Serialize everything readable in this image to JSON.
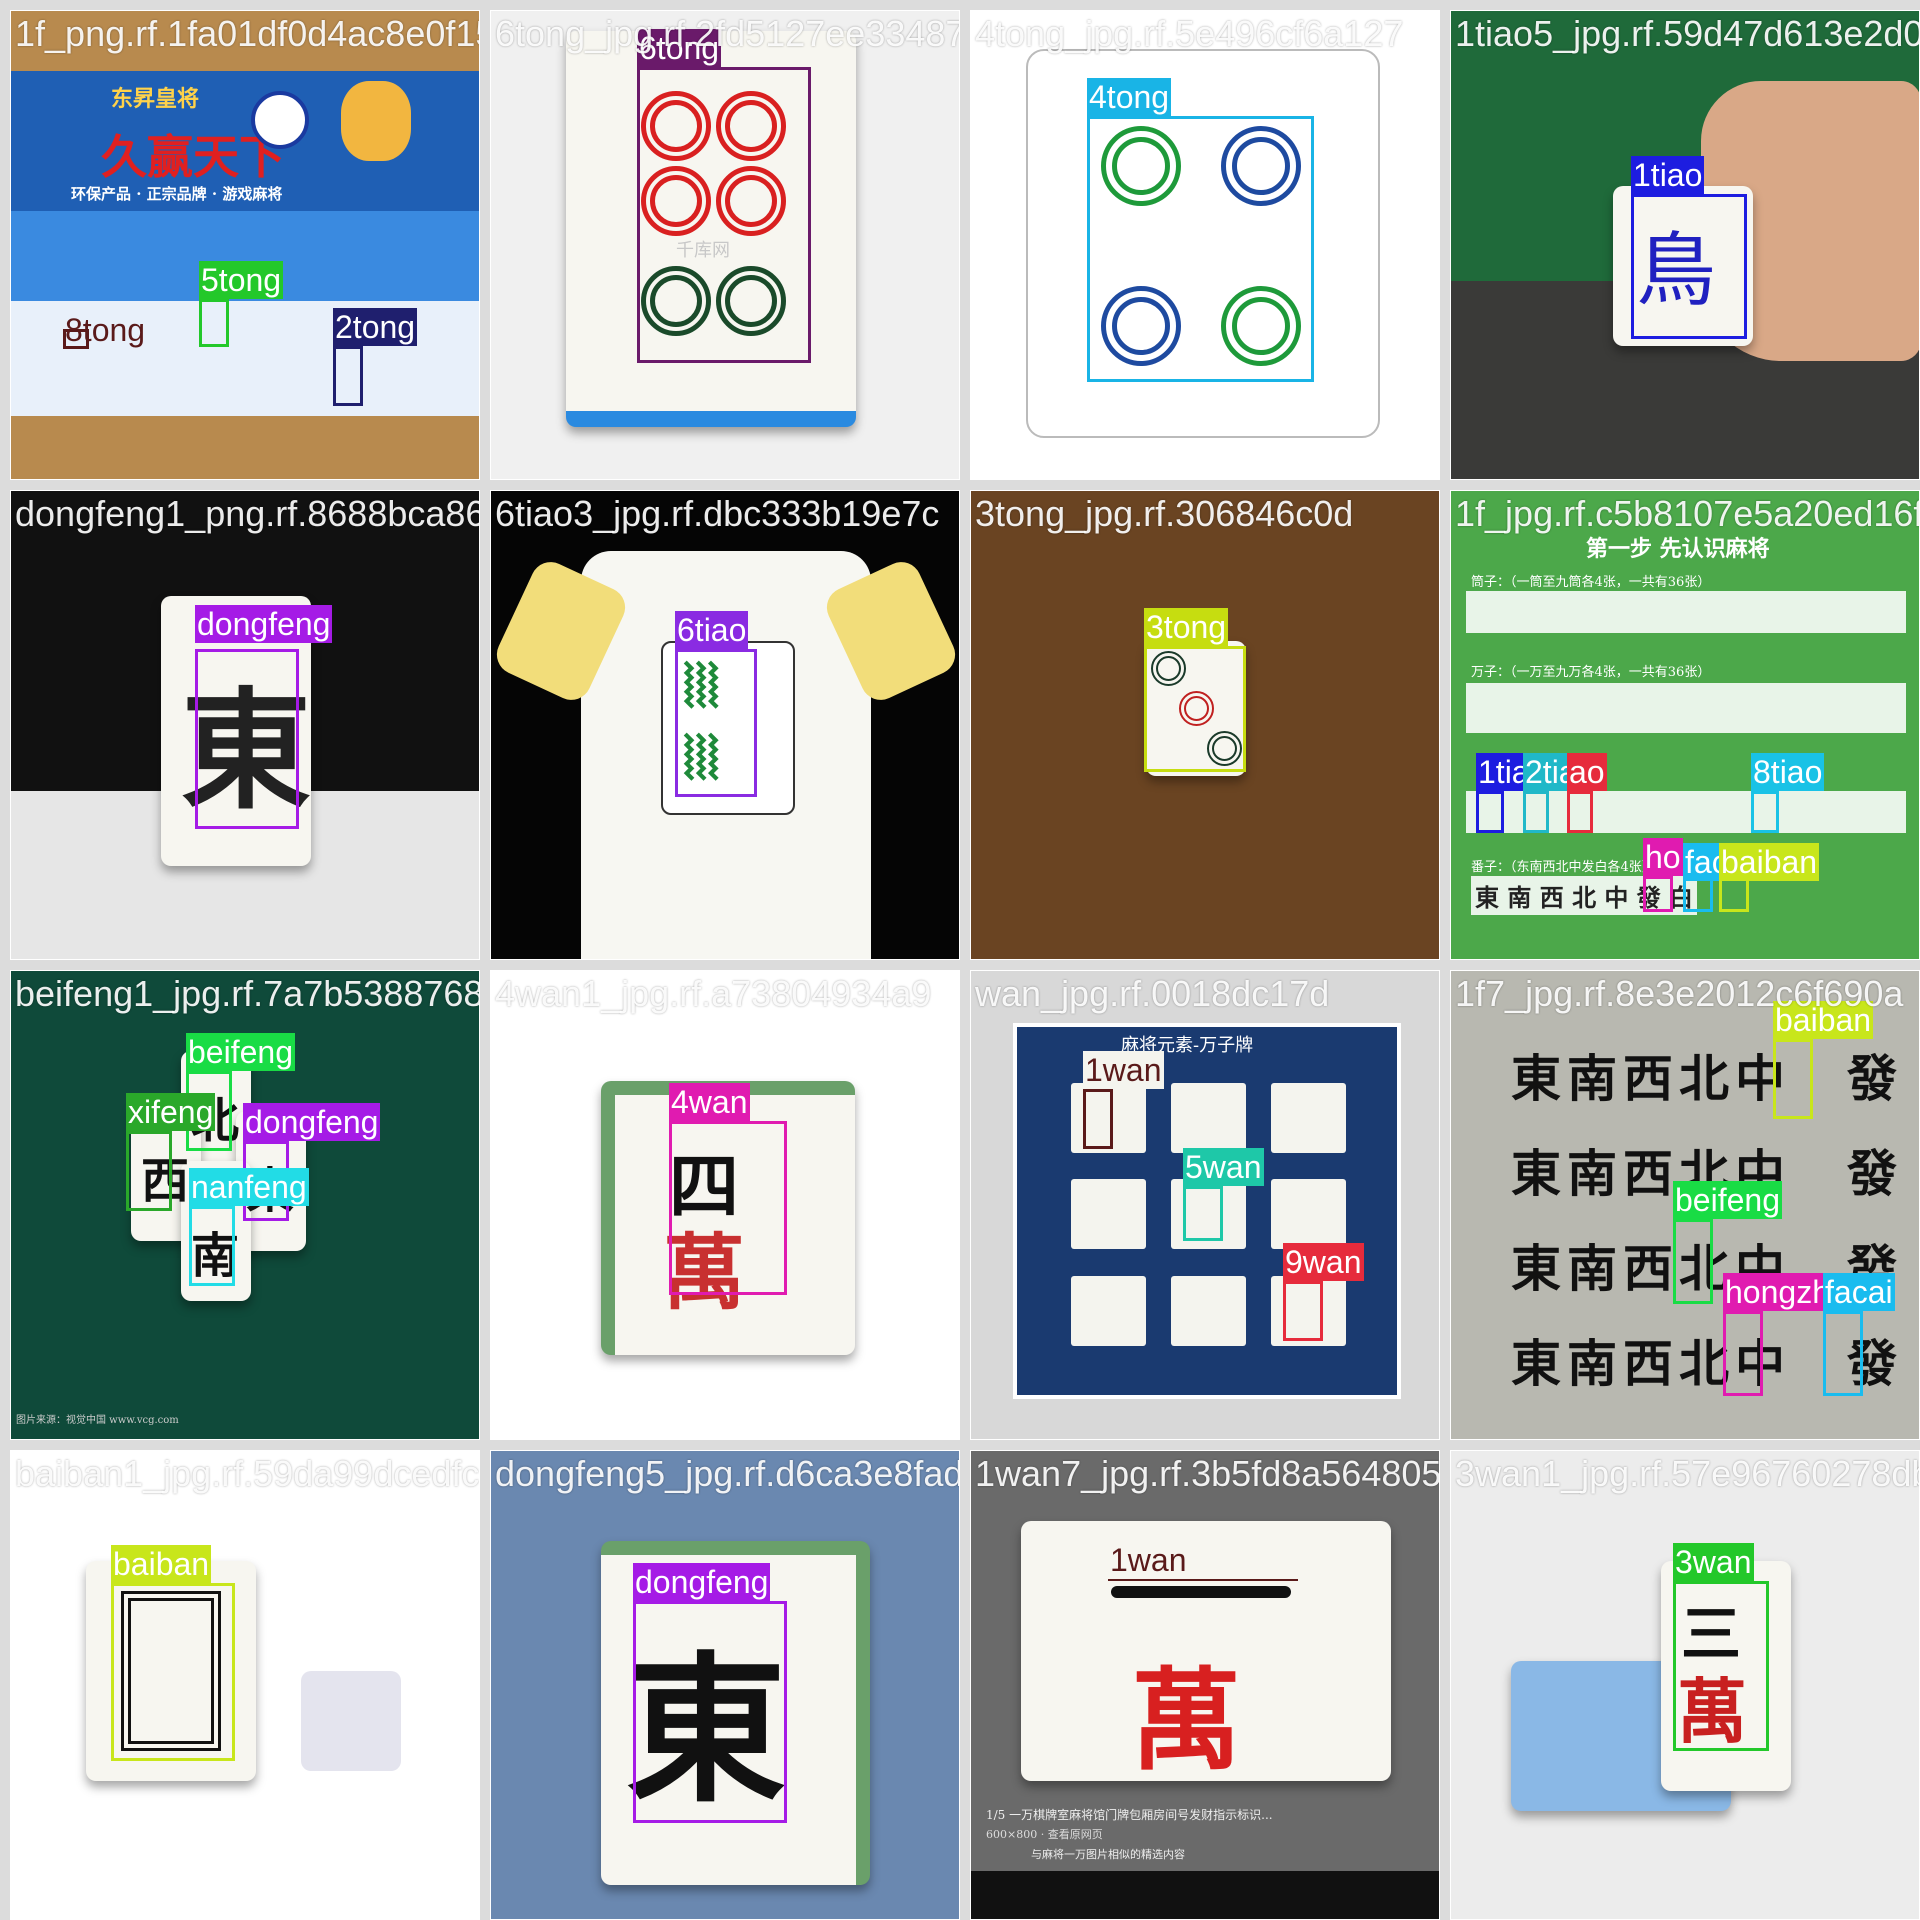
{
  "tiles": [
    {
      "file": "1f_png.rf.1fa01df0d4ac8e0f1578127ee33487",
      "labels": [
        "5tong",
        "8tong",
        "2tong"
      ]
    },
    {
      "file": "6tong_jpg.rf.2fd5127ee33487",
      "labels": [
        "6tong"
      ]
    },
    {
      "file": "4tong_jpg.rf.5e496cf6a127",
      "labels": [
        "4tong"
      ]
    },
    {
      "file": "1tiao5_jpg.rf.59d47d613e2d0",
      "labels": [
        "1tiao"
      ]
    },
    {
      "file": "dongfeng1_png.rf.8688bca86b",
      "labels": [
        "dongfeng"
      ]
    },
    {
      "file": "6tiao3_jpg.rf.dbc333b19e7c",
      "labels": [
        "6tiao"
      ]
    },
    {
      "file": "3tong_jpg.rf.306846c0d",
      "labels": [
        "3tong"
      ]
    },
    {
      "file": "1f_jpg.rf.c5b8107e5a20ed16f9",
      "labels": [
        "1tia",
        "2tiao",
        "ao",
        "8tiao",
        "ho",
        "fac",
        "baiban"
      ]
    },
    {
      "file": "beifeng1_jpg.rf.7a7b53887682",
      "labels": [
        "beifeng",
        "xifeng",
        "dongfeng",
        "nanfeng"
      ]
    },
    {
      "file": "4wan1_jpg.rf.a73804934a9",
      "labels": [
        "4wan"
      ]
    },
    {
      "file": "wan_jpg.rf.0018dc17d",
      "labels": [
        "1wan",
        "5wan",
        "9wan"
      ]
    },
    {
      "file": "1f7_jpg.rf.8e3e2012c6f690a",
      "labels": [
        "baiban",
        "beifeng",
        "hongzhong",
        "facai"
      ]
    },
    {
      "file": "baiban1_jpg.rf.59da99dcedfc",
      "labels": [
        "baiban"
      ]
    },
    {
      "file": "dongfeng5_jpg.rf.d6ca3e8fad",
      "labels": [
        "dongfeng"
      ]
    },
    {
      "file": "1wan7_jpg.rf.3b5fd8a5648058",
      "labels": [
        "1wan"
      ]
    },
    {
      "file": "3wan1_jpg.rf.57e96760278db",
      "labels": [
        "3wan"
      ]
    }
  ],
  "colors": {
    "1tiao": "#1d1de0",
    "2tiao": "#20b8c8",
    "6tiao": "#8a2be2",
    "8tiao": "#19c2e6",
    "2tong": "#1f1f6e",
    "3tong": "#c6dd10",
    "4tong": "#19b4e6",
    "5tong": "#23c82a",
    "6tong": "#6a1a6a",
    "8tong": "#5a1a1a",
    "1wan": "#5a1a1a",
    "3wan": "#23c82a",
    "4wan": "#e01bb0",
    "5wan": "#1ec8a8",
    "9wan": "#e62b3c",
    "dongfeng": "#a51be6",
    "nanfeng": "#22dce6",
    "xifeng": "#2aa82a",
    "beifeng": "#19dc45",
    "baiban": "#c8e61b",
    "facai": "#19bcef",
    "hongzhong": "#e01bb0"
  },
  "tile_texts": {
    "box_title": "久赢天下",
    "box_brand": "东昇皇将",
    "box_sub": "环保产品 · 正宗品牌 · 游戏麻将",
    "sheet_title": "第一步 先认识麻将",
    "sheet_row1": "筒子：（一筒至九筒各4张，一共有36张）",
    "sheet_row2": "万子：（一万至九万各4张，一共有36张）",
    "sheet_row4": "番子：（东南西北中发白各4张）",
    "sheet_winds": "東 南 西 北 中 發 白",
    "poster_title": "麻将元素-万子牌",
    "shot_caption": "1/5 一万棋牌室麻将馆门牌包厢房间号发财指示标识...",
    "shot_price": "600×800 · 查看原网页",
    "shot_similar": "与麻将一万图片相似的精选内容",
    "watermark1": "千库网",
    "credit": "图片来源：视觉中国 www.vcg.com"
  }
}
